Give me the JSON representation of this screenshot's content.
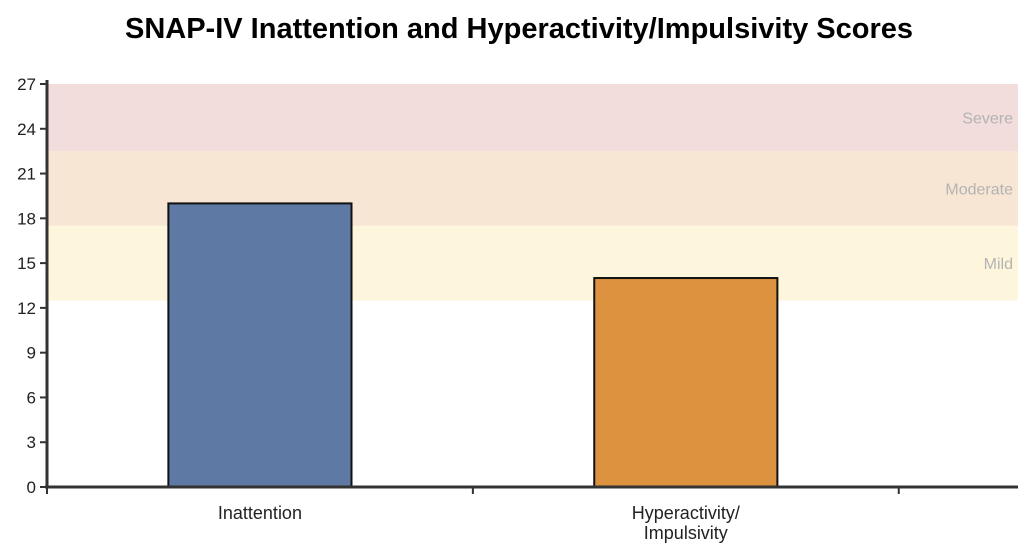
{
  "chart_data": {
    "type": "bar",
    "title": "SNAP-IV Inattention and Hyperactivity/Impulsivity Scores",
    "categories": [
      "Inattention",
      "Hyperactivity/ Impulsivity"
    ],
    "category_lines": [
      [
        "Inattention"
      ],
      [
        "Hyperactivity/",
        "Impulsivity"
      ]
    ],
    "values": [
      19,
      14
    ],
    "bar_colors": [
      "#5e79a3",
      "#dd923f"
    ],
    "ylim": [
      0,
      27
    ],
    "yticks": [
      "0",
      "3",
      "6",
      "9",
      "12",
      "15",
      "18",
      "21",
      "24",
      "27"
    ],
    "bands": [
      {
        "label": "Mild",
        "from": 12.5,
        "to": 17.5,
        "color": "#fdf5dc"
      },
      {
        "label": "Moderate",
        "from": 17.5,
        "to": 22.5,
        "color": "#f8e6d4"
      },
      {
        "label": "Severe",
        "from": 22.5,
        "to": 27,
        "color": "#f3dcdc"
      }
    ],
    "xlabel": "",
    "ylabel": "",
    "grid": false
  }
}
